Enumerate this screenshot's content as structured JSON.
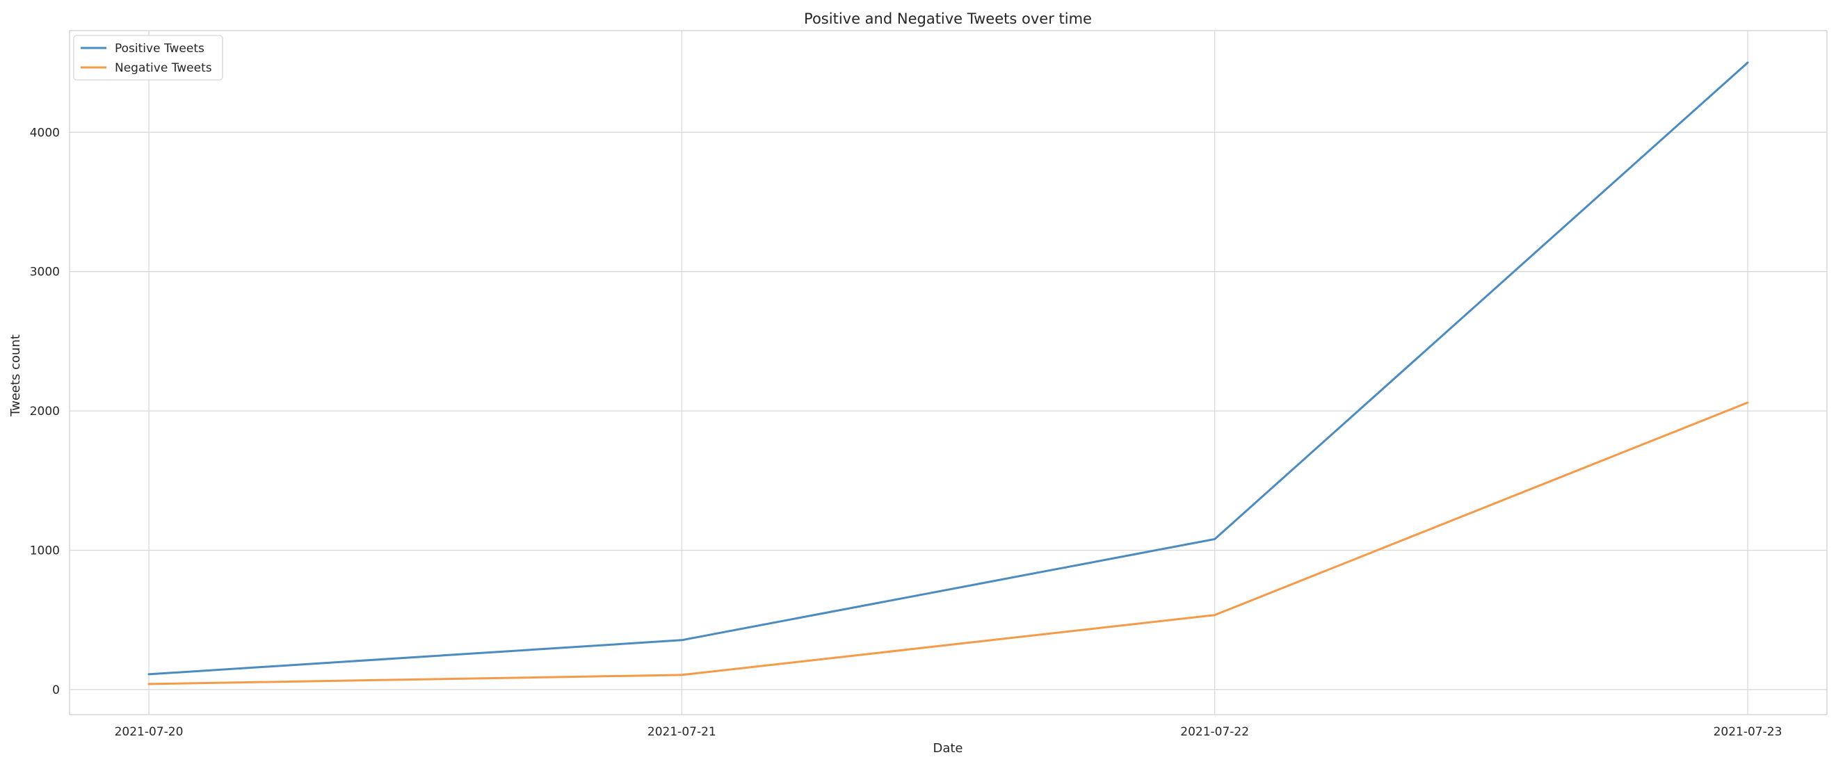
{
  "chart_data": {
    "type": "line",
    "title": "Positive and Negative Tweets over time",
    "xlabel": "Date",
    "ylabel": "Tweets count",
    "x": [
      "2021-07-20",
      "2021-07-21",
      "2021-07-22",
      "2021-07-23"
    ],
    "y_ticks": [
      0,
      1000,
      2000,
      3000,
      4000
    ],
    "ylim": [
      -180,
      4730
    ],
    "grid": true,
    "legend_position": "top-left",
    "series": [
      {
        "name": "Positive Tweets",
        "color": "#4c8bbf",
        "values": [
          110,
          355,
          1080,
          4500
        ]
      },
      {
        "name": "Negative Tweets",
        "color": "#f59a48",
        "values": [
          40,
          105,
          535,
          2060
        ]
      }
    ]
  }
}
